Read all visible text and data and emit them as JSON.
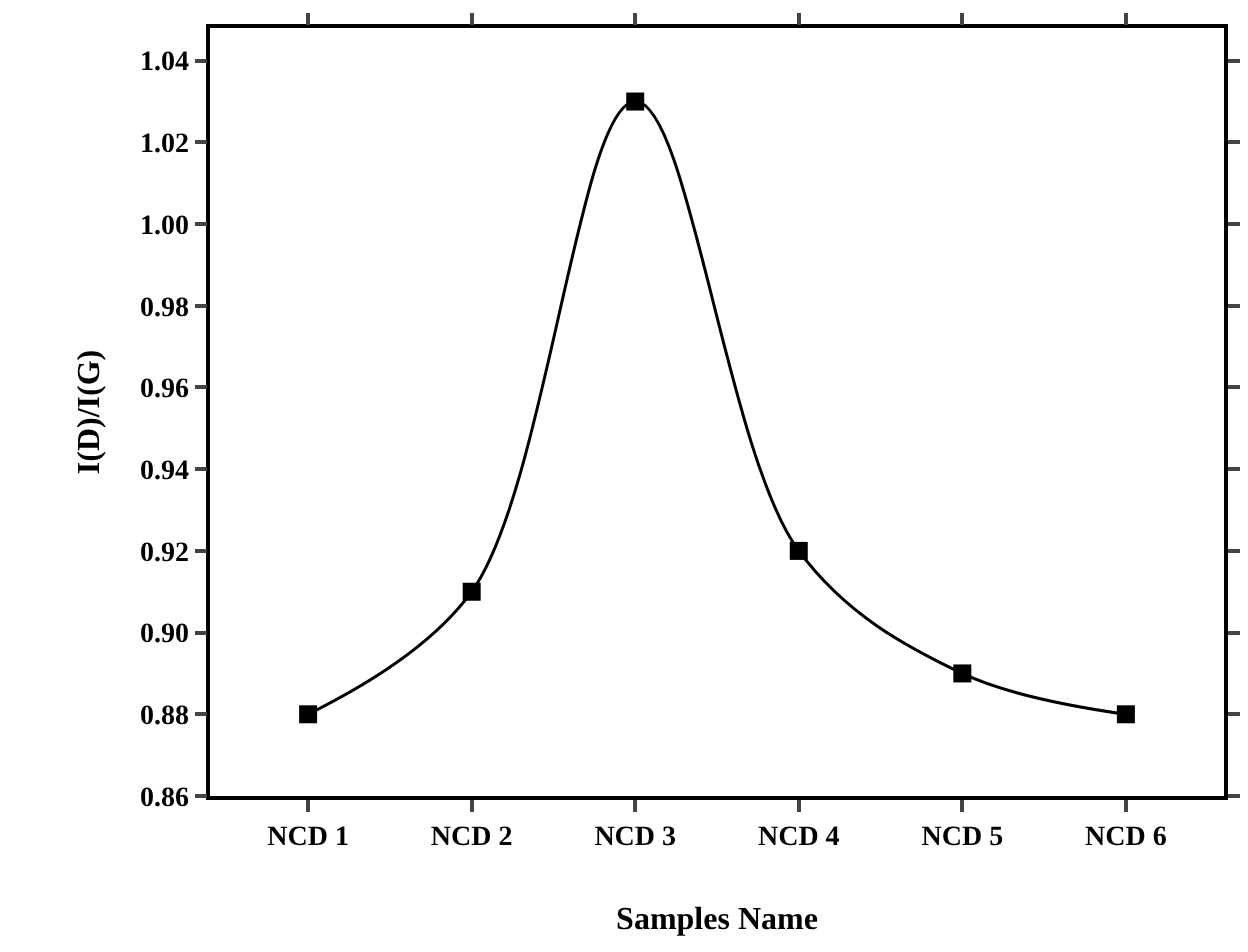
{
  "chart_data": {
    "type": "line",
    "xlabel": "Samples Name",
    "ylabel": "I(D)/I(G)",
    "categories": [
      "NCD 1",
      "NCD 2",
      "NCD 3",
      "NCD 4",
      "NCD 5",
      "NCD 6"
    ],
    "series": [
      {
        "color": "#000000",
        "values": [
          0.88,
          0.91,
          1.03,
          0.92,
          0.89,
          0.88
        ]
      }
    ],
    "ylim": [
      0.86,
      1.048
    ],
    "yticks": [
      0.86,
      0.88,
      {
        "value": 0.9,
        "label": "0.90"
      },
      0.92,
      0.94,
      0.96,
      0.98,
      {
        "value": 1,
        "label": "1.00"
      },
      1.02,
      1.04
    ],
    "marker": "square",
    "line_style": "solid",
    "grid": false
  }
}
